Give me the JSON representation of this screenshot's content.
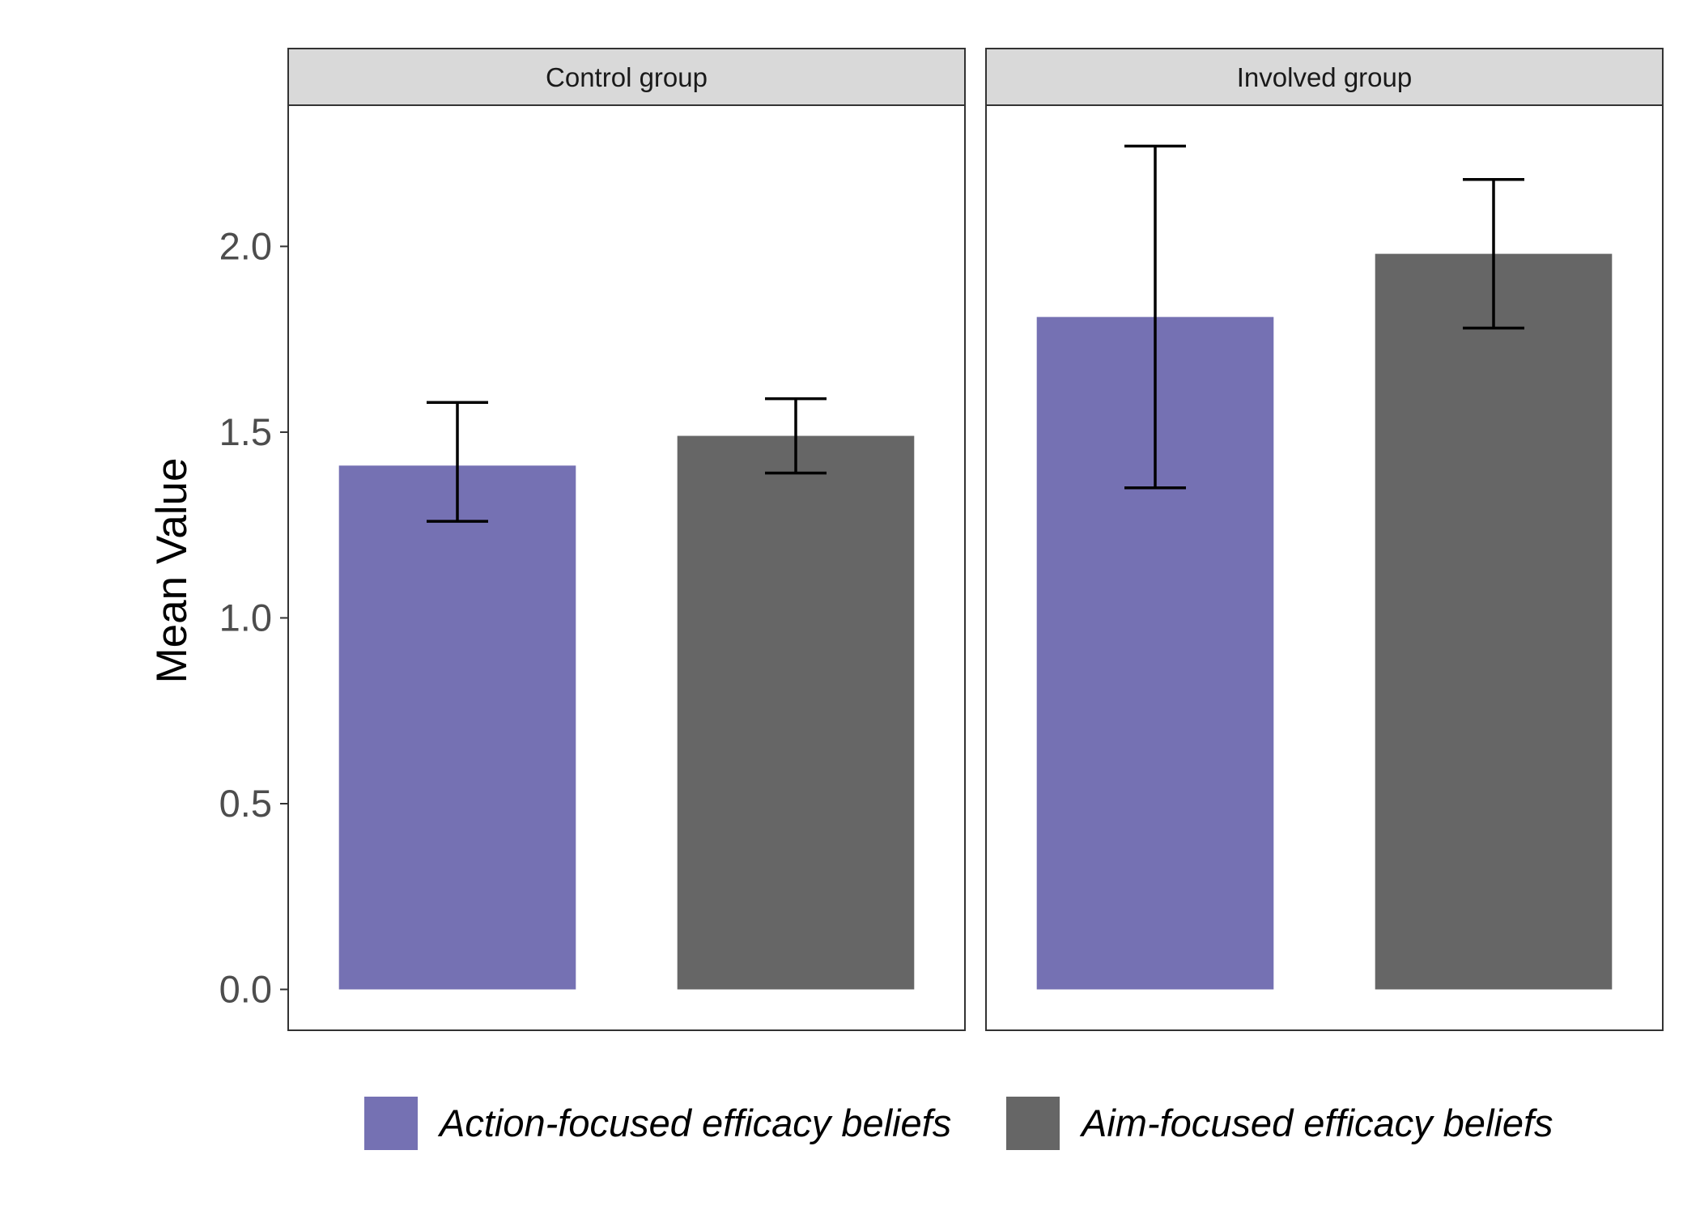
{
  "chart_data": {
    "type": "bar",
    "ylabel": "Mean Value",
    "ylim": [
      -0.11,
      2.38
    ],
    "yticks": [
      "0.0",
      "0.5",
      "1.0",
      "1.5",
      "2.0"
    ],
    "grid": false,
    "legend_position": "bottom",
    "panels": [
      {
        "label": "Control group",
        "bars": [
          {
            "series": "Action-focused efficacy beliefs",
            "value": 1.41,
            "error_low": 1.26,
            "error_high": 1.58
          },
          {
            "series": "Aim-focused efficacy beliefs",
            "value": 1.49,
            "error_low": 1.39,
            "error_high": 1.59
          }
        ]
      },
      {
        "label": "Involved group",
        "bars": [
          {
            "series": "Action-focused efficacy beliefs",
            "value": 1.81,
            "error_low": 1.35,
            "error_high": 2.27
          },
          {
            "series": "Aim-focused efficacy beliefs",
            "value": 1.98,
            "error_low": 1.78,
            "error_high": 2.18
          }
        ]
      }
    ],
    "series": [
      {
        "name": "Action-focused efficacy beliefs",
        "color": "#7571b3"
      },
      {
        "name": "Aim-focused efficacy beliefs",
        "color": "#666666"
      }
    ]
  }
}
